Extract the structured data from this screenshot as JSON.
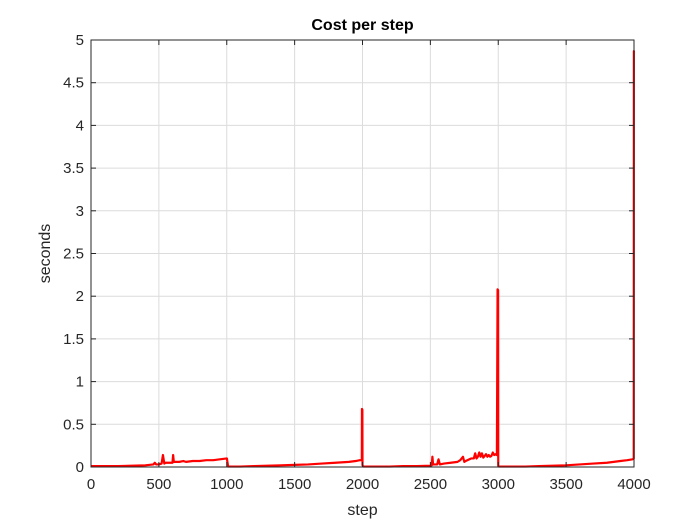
{
  "chart_data": {
    "type": "line",
    "title": "Cost per step",
    "xlabel": "step",
    "ylabel": "seconds",
    "xlim": [
      0,
      4000
    ],
    "ylim": [
      0,
      5
    ],
    "grid": true,
    "x_ticks": [
      0,
      500,
      1000,
      1500,
      2000,
      2500,
      3000,
      3500,
      4000
    ],
    "y_ticks": [
      0,
      0.5,
      1,
      1.5,
      2,
      2.5,
      3,
      3.5,
      4,
      4.5,
      5
    ],
    "x_tick_labels": [
      "0",
      "500",
      "1000",
      "1500",
      "2000",
      "2500",
      "3000",
      "3500",
      "4000"
    ],
    "y_tick_labels": [
      "0",
      "0.5",
      "1",
      "1.5",
      "2",
      "2.5",
      "3",
      "3.5",
      "4",
      "4.5",
      "5"
    ],
    "colors": {
      "series": "#ff0000",
      "grid": "#dcdcdc",
      "axis": "#262626"
    },
    "series": [
      {
        "x": [
          1,
          100,
          200,
          300,
          400,
          460,
          470,
          480,
          500,
          520,
          530,
          540,
          550,
          560,
          600,
          605,
          610,
          650,
          680,
          700,
          750,
          800,
          850,
          900,
          950,
          1000,
          1001,
          1010,
          1100,
          1200,
          1300,
          1400,
          1500,
          1600,
          1700,
          1800,
          1900,
          1950,
          1980,
          1995,
          1996,
          1999,
          2000,
          2001,
          2005,
          2100,
          2200,
          2300,
          2400,
          2500,
          2510,
          2515,
          2520,
          2550,
          2560,
          2570,
          2600,
          2650,
          2700,
          2720,
          2740,
          2750,
          2760,
          2800,
          2820,
          2830,
          2840,
          2850,
          2860,
          2870,
          2880,
          2890,
          2900,
          2910,
          2920,
          2930,
          2940,
          2950,
          2960,
          2970,
          2980,
          2990,
          2995,
          2999,
          3000,
          3001,
          3005,
          3100,
          3200,
          3300,
          3400,
          3500,
          3600,
          3700,
          3800,
          3900,
          3950,
          3990,
          3998,
          3999,
          4000
        ],
        "y": [
          0.01,
          0.01,
          0.01,
          0.015,
          0.02,
          0.03,
          0.05,
          0.03,
          0.03,
          0.04,
          0.14,
          0.04,
          0.05,
          0.05,
          0.05,
          0.14,
          0.06,
          0.06,
          0.07,
          0.06,
          0.07,
          0.07,
          0.08,
          0.08,
          0.09,
          0.1,
          0.1,
          0.005,
          0.005,
          0.01,
          0.015,
          0.02,
          0.025,
          0.03,
          0.04,
          0.05,
          0.06,
          0.07,
          0.08,
          0.08,
          0.68,
          0.67,
          0.02,
          0.02,
          0.005,
          0.005,
          0.005,
          0.01,
          0.01,
          0.015,
          0.02,
          0.12,
          0.03,
          0.03,
          0.09,
          0.03,
          0.04,
          0.05,
          0.06,
          0.08,
          0.12,
          0.06,
          0.07,
          0.1,
          0.1,
          0.16,
          0.1,
          0.12,
          0.17,
          0.12,
          0.16,
          0.11,
          0.13,
          0.15,
          0.12,
          0.14,
          0.12,
          0.13,
          0.17,
          0.14,
          0.15,
          0.14,
          2.08,
          2.07,
          0.02,
          0.01,
          0.005,
          0.005,
          0.005,
          0.01,
          0.015,
          0.02,
          0.03,
          0.04,
          0.05,
          0.07,
          0.08,
          0.09,
          0.1,
          4.87,
          4.85
        ]
      }
    ]
  }
}
